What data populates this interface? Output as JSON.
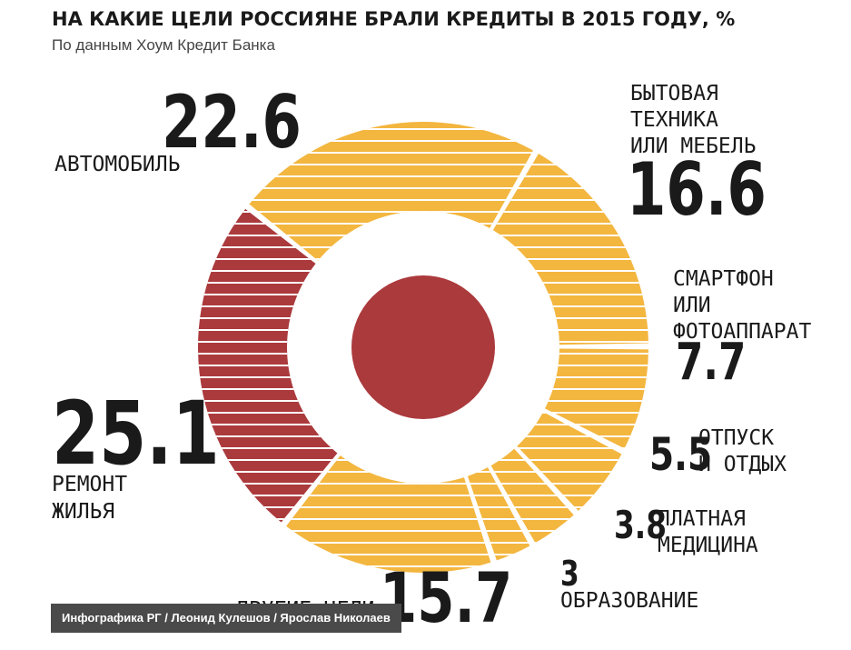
{
  "header": {
    "title": "НА КАКИЕ ЦЕЛИ РОССИЯНЕ БРАЛИ КРЕДИТЫ В 2015 ГОДУ, %",
    "subtitle": "По данным Хоум Кредит Банка"
  },
  "credit": "Инфографика РГ / Леонид Кулешов / Ярослав Николаев",
  "colors": {
    "orange": "#f3b63f",
    "red": "#ab3a3d",
    "stripe": "#ffffff",
    "text": "#1a1a1a"
  },
  "chart_data": {
    "type": "pie",
    "unit": "%",
    "slices": [
      {
        "label": "БЫТОВАЯ ТЕХНИКА ИЛИ МЕБЕЛЬ",
        "label_lines": [
          "БЫТОВАЯ",
          "ТЕХНИКА",
          "ИЛИ МЕБЕЛЬ"
        ],
        "value": 16.6,
        "value_text": "16.6",
        "color": "orange"
      },
      {
        "label": "СМАРТФОН ИЛИ ФОТОАППАРАТ",
        "label_lines": [
          "СМАРТФОН",
          "ИЛИ",
          "ФОТОАППАРАТ"
        ],
        "value": 7.7,
        "value_text": "7.7",
        "color": "orange"
      },
      {
        "label": "ОТПУСК И ОТДЫХ",
        "label_lines": [
          "ОТПУСК",
          "И ОТДЫХ"
        ],
        "value": 5.5,
        "value_text": "5.5",
        "color": "orange"
      },
      {
        "label": "ПЛАТНАЯ МЕДИЦИНА",
        "label_lines": [
          "ПЛАТНАЯ",
          "МЕДИЦИНА"
        ],
        "value": 3.8,
        "value_text": "3.8",
        "color": "orange"
      },
      {
        "label": "ОБРАЗОВАНИЕ",
        "label_lines": [
          "ОБРАЗОВАНИЕ"
        ],
        "value": 3,
        "value_text": "3",
        "color": "orange"
      },
      {
        "label": "ДРУГИЕ ЦЕЛИ",
        "label_lines": [
          "ДРУГИЕ ЦЕЛИ"
        ],
        "value": 15.7,
        "value_text": "15.7",
        "color": "orange"
      },
      {
        "label": "РЕМОНТ ЖИЛЬЯ",
        "label_lines": [
          "РЕМОНТ",
          "ЖИЛЬЯ"
        ],
        "value": 25.1,
        "value_text": "25.1",
        "color": "red"
      },
      {
        "label": "АВТОМОБИЛЬ",
        "label_lines": [
          "АВТОМОБИЛЬ"
        ],
        "value": 22.6,
        "value_text": "22.6",
        "color": "orange"
      }
    ]
  }
}
